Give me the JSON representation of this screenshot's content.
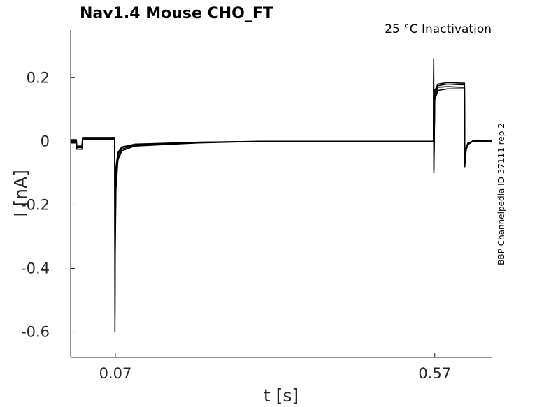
{
  "chart_data": {
    "type": "line",
    "title": "Nav1.4  Mouse  CHO_FT",
    "subtitle": "25 °C  Inactivation",
    "side_label": "BBP Channelpedia ID 37111 rep 2",
    "xlabel": "t [s]",
    "ylabel": "I [nA]",
    "xlim": [
      0.0,
      0.66
    ],
    "ylim": [
      -0.68,
      0.35
    ],
    "x_ticks": [
      0.07,
      0.57
    ],
    "x_tick_labels": [
      "0.07",
      "0.57"
    ],
    "y_ticks": [
      0.2,
      0,
      -0.2,
      -0.4,
      -0.6
    ],
    "y_tick_labels": [
      "0.2",
      "0",
      "-0.2",
      "-0.4",
      "-0.6"
    ],
    "grid": false,
    "line_color": "#000000",
    "series": [
      {
        "x": [
          0.0,
          0.009,
          0.0095,
          0.018,
          0.0185,
          0.069,
          0.0693,
          0.0698,
          0.071,
          0.074,
          0.08,
          0.1,
          0.2,
          0.3,
          0.4,
          0.5,
          0.568,
          0.5683,
          0.5686,
          0.57,
          0.575,
          0.59,
          0.61,
          0.6165,
          0.617,
          0.619,
          0.622,
          0.63,
          0.66
        ],
        "y": [
          0.0,
          0.0,
          -0.02,
          -0.02,
          0.01,
          0.01,
          -0.6,
          -0.35,
          -0.15,
          -0.06,
          -0.03,
          -0.015,
          -0.005,
          0.0,
          0.0,
          0.0,
          0.0,
          0.26,
          -0.1,
          0.13,
          0.16,
          0.165,
          0.165,
          0.165,
          -0.08,
          -0.03,
          -0.01,
          0.0,
          0.0
        ]
      },
      {
        "x": [
          0.0,
          0.009,
          0.0095,
          0.018,
          0.0185,
          0.069,
          0.0693,
          0.0698,
          0.071,
          0.074,
          0.08,
          0.1,
          0.2,
          0.3,
          0.4,
          0.5,
          0.568,
          0.5683,
          0.5686,
          0.57,
          0.575,
          0.59,
          0.61,
          0.6165,
          0.617,
          0.619,
          0.622,
          0.63,
          0.66
        ],
        "y": [
          0.005,
          0.005,
          -0.015,
          -0.015,
          0.012,
          0.012,
          -0.55,
          -0.3,
          -0.12,
          -0.05,
          -0.025,
          -0.012,
          -0.004,
          0.0,
          0.0,
          0.0,
          0.0,
          0.24,
          -0.09,
          0.15,
          0.175,
          0.18,
          0.178,
          0.178,
          -0.07,
          -0.025,
          -0.008,
          0.002,
          0.002
        ]
      },
      {
        "x": [
          0.0,
          0.009,
          0.0095,
          0.018,
          0.0185,
          0.069,
          0.0693,
          0.0698,
          0.071,
          0.074,
          0.08,
          0.1,
          0.2,
          0.3,
          0.4,
          0.5,
          0.568,
          0.5683,
          0.5686,
          0.57,
          0.575,
          0.59,
          0.61,
          0.6165,
          0.617,
          0.619,
          0.622,
          0.63,
          0.66
        ],
        "y": [
          -0.005,
          -0.005,
          -0.025,
          -0.025,
          0.005,
          0.005,
          -0.45,
          -0.25,
          -0.1,
          -0.04,
          -0.02,
          -0.01,
          -0.003,
          0.0,
          0.0,
          0.0,
          0.0,
          0.22,
          -0.08,
          0.16,
          0.18,
          0.185,
          0.183,
          0.183,
          -0.06,
          -0.02,
          -0.006,
          0.0,
          0.0
        ]
      },
      {
        "x": [
          0.0,
          0.009,
          0.0095,
          0.018,
          0.0185,
          0.069,
          0.0693,
          0.0698,
          0.071,
          0.074,
          0.08,
          0.1,
          0.2,
          0.3,
          0.4,
          0.5,
          0.568,
          0.5683,
          0.5686,
          0.57,
          0.575,
          0.59,
          0.61,
          0.6165,
          0.617,
          0.619,
          0.622,
          0.63,
          0.66
        ],
        "y": [
          0.002,
          0.002,
          -0.018,
          -0.018,
          0.008,
          0.008,
          -0.3,
          -0.18,
          -0.08,
          -0.035,
          -0.018,
          -0.009,
          -0.003,
          0.0,
          0.0,
          0.0,
          0.0,
          0.2,
          -0.07,
          0.14,
          0.17,
          0.172,
          0.17,
          0.17,
          -0.05,
          -0.018,
          -0.005,
          0.0,
          0.0
        ]
      }
    ]
  }
}
